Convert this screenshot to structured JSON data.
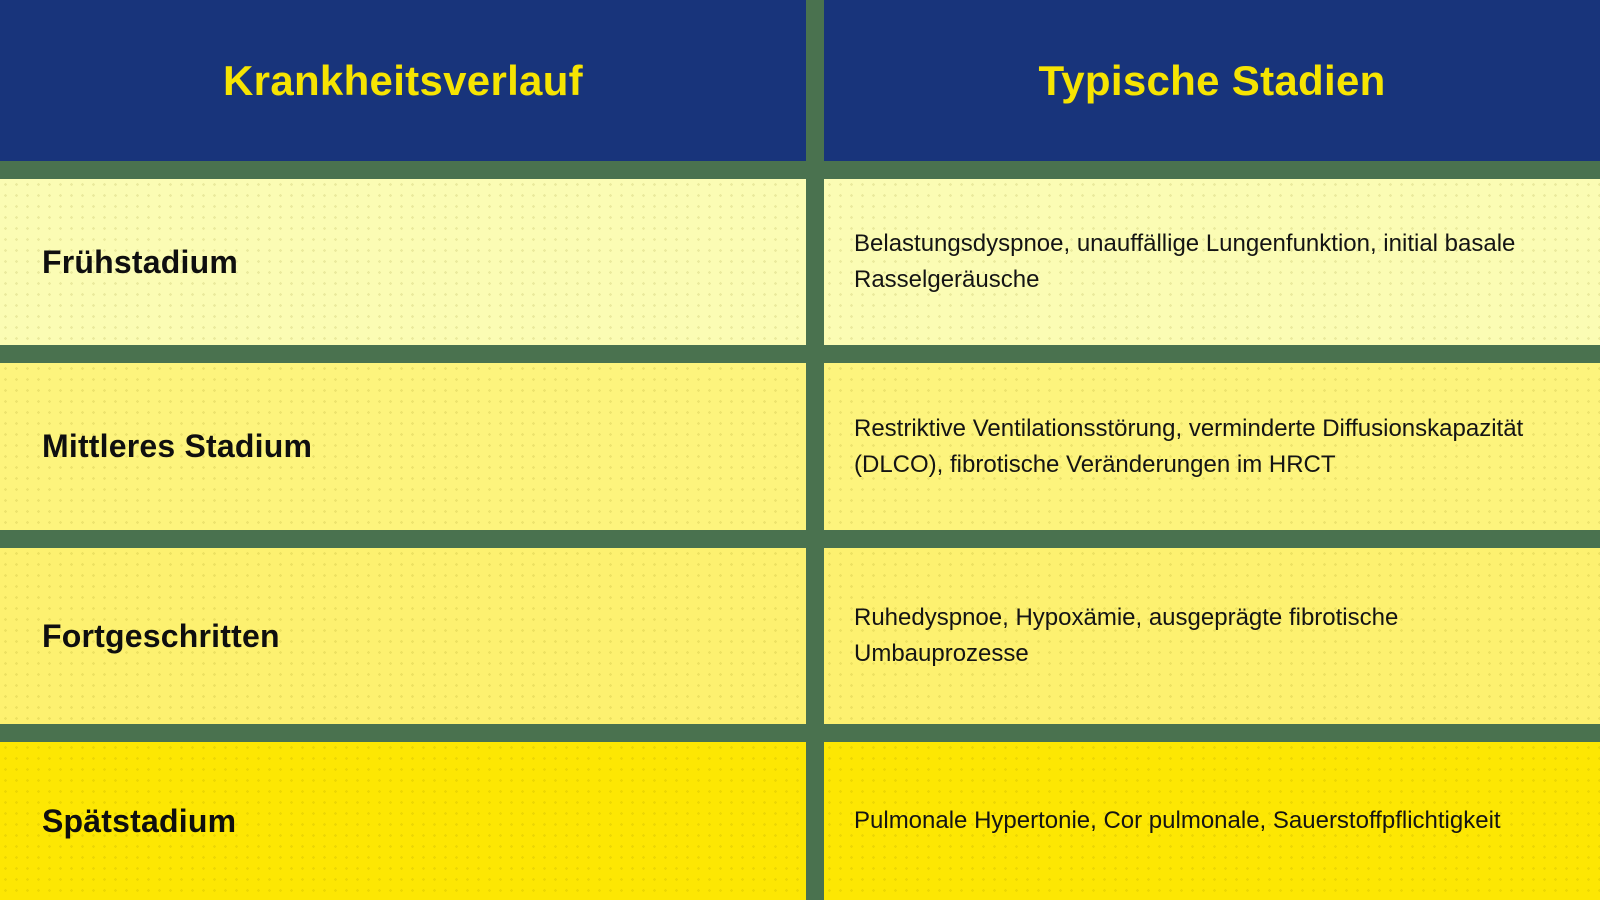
{
  "chart_data": {
    "type": "table",
    "columns": [
      "Krankheitsverlauf",
      "Typische Stadien"
    ],
    "rows": [
      [
        "Frühstadium",
        "Belastungsdyspnoe, unauffällige Lungenfunktion, initial basale Rasselgeräusche"
      ],
      [
        "Mittleres Stadium",
        "Restriktive Ventilationsstörung, verminderte Diffusionskapazität (DLCO), fibrotische Veränderungen im HRCT"
      ],
      [
        "Fortgeschritten",
        "Ruhedyspnoe, Hypoxämie, ausgeprägte fibrotische Umbauprozesse"
      ],
      [
        "Spätstadium",
        "Pulmonale Hypertonie, Cor pulmonale, Sauerstoffpflichtigkeit"
      ]
    ],
    "layout": {
      "legend": false,
      "grid": false,
      "header_position": "top"
    }
  },
  "colors": {
    "header_background": "#18347b",
    "header_text": "#f6e402",
    "gutter_green": "#4a724f",
    "body_text": "#141414",
    "row_backgrounds": [
      "#fbfcb4",
      "#fdf47d",
      "#fdf170",
      "#fde703"
    ]
  }
}
